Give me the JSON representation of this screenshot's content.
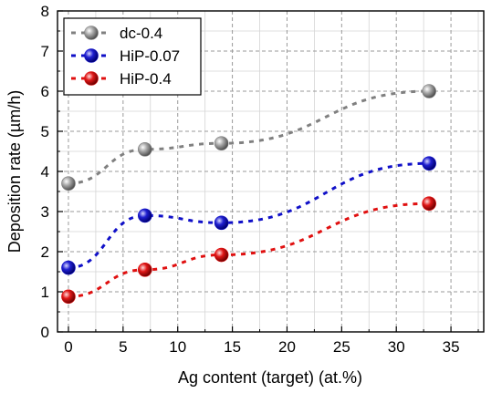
{
  "chart_data": {
    "type": "line",
    "title": "",
    "xlabel": "Ag content (target) (at.%)",
    "ylabel": "Deposition rate (µm/h)",
    "xlim": [
      -1,
      38
    ],
    "ylim": [
      0,
      8
    ],
    "xticks": [
      0,
      5,
      10,
      15,
      20,
      25,
      30,
      35
    ],
    "yticks": [
      0,
      1,
      2,
      3,
      4,
      5,
      6,
      7,
      8
    ],
    "grid": true,
    "legend_position": "top-left",
    "series": [
      {
        "name": "dc-0.4",
        "color": "#808080",
        "x": [
          0,
          7,
          14,
          33
        ],
        "y": [
          3.7,
          4.55,
          4.7,
          6.0
        ]
      },
      {
        "name": "HiP-0.07",
        "color": "#1010c8",
        "x": [
          0,
          7,
          14,
          33
        ],
        "y": [
          1.6,
          2.9,
          2.72,
          4.2
        ]
      },
      {
        "name": "HiP-0.4",
        "color": "#e01010",
        "x": [
          0,
          7,
          14,
          33
        ],
        "y": [
          0.88,
          1.55,
          1.92,
          3.2
        ]
      }
    ]
  }
}
